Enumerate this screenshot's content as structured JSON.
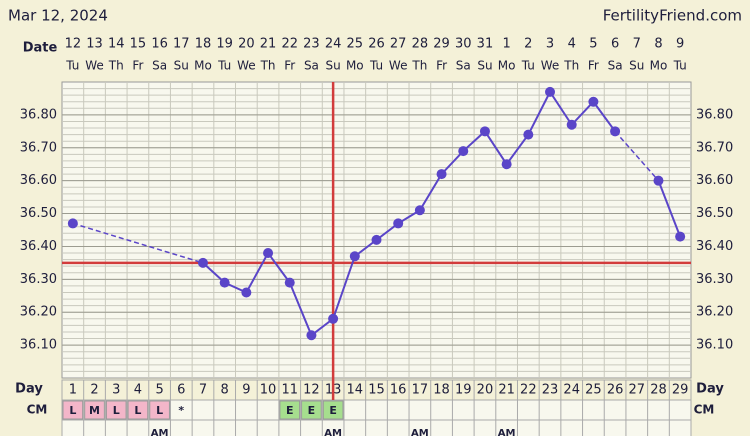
{
  "header": {
    "date": "Mar 12, 2024",
    "site": "FertilityFriend.com"
  },
  "chart_data": {
    "type": "line",
    "row_labels": {
      "date": "Date",
      "day": "Day",
      "cm": "CM"
    },
    "dates": [
      "12",
      "13",
      "14",
      "15",
      "16",
      "17",
      "18",
      "19",
      "20",
      "21",
      "22",
      "23",
      "24",
      "25",
      "26",
      "27",
      "28",
      "29",
      "30",
      "31",
      "1",
      "2",
      "3",
      "4",
      "5",
      "6",
      "7",
      "8",
      "9"
    ],
    "weekdays": [
      "Tu",
      "We",
      "Th",
      "Fr",
      "Sa",
      "Su",
      "Mo",
      "Tu",
      "We",
      "Th",
      "Fr",
      "Sa",
      "Su",
      "Mo",
      "Tu",
      "We",
      "Th",
      "Fr",
      "Sa",
      "Su",
      "Mo",
      "Tu",
      "We",
      "Th",
      "Fr",
      "Sa",
      "Su",
      "Mo",
      "Tu"
    ],
    "categories": [
      1,
      2,
      3,
      4,
      5,
      6,
      7,
      8,
      9,
      10,
      11,
      12,
      13,
      14,
      15,
      16,
      17,
      18,
      19,
      20,
      21,
      22,
      23,
      24,
      25,
      26,
      27,
      28,
      29
    ],
    "values": [
      36.47,
      null,
      null,
      null,
      null,
      null,
      36.35,
      36.29,
      36.26,
      36.38,
      36.29,
      36.13,
      36.18,
      36.37,
      36.42,
      36.47,
      36.51,
      36.62,
      36.69,
      36.75,
      36.65,
      36.74,
      36.87,
      36.77,
      36.84,
      36.75,
      null,
      36.6,
      36.43
    ],
    "color": "#5a45c8",
    "ylim": [
      36.0,
      36.9
    ],
    "yticks": [
      {
        "value": 36.1,
        "label": "36.10"
      },
      {
        "value": 36.2,
        "label": "36.20"
      },
      {
        "value": 36.3,
        "label": "36.30"
      },
      {
        "value": 36.4,
        "label": "36.40"
      },
      {
        "value": 36.5,
        "label": "36.50"
      },
      {
        "value": 36.6,
        "label": "36.60"
      },
      {
        "value": 36.7,
        "label": "36.70"
      },
      {
        "value": 36.8,
        "label": "36.80"
      }
    ],
    "minor_grid_step": 0.02,
    "grid": true,
    "coverline": 36.35,
    "ovulation_day": 13,
    "marker_color": "#d23c3c",
    "cm": [
      "L",
      "M",
      "L",
      "L",
      "L",
      "*",
      null,
      null,
      null,
      null,
      "E",
      "E",
      "E",
      null,
      null,
      null,
      null,
      null,
      null,
      null,
      null,
      null,
      null,
      null,
      null,
      null,
      null,
      null,
      null
    ],
    "cm_colors": {
      "L": "#f3b6c9",
      "M": "#f3b6c9",
      "E": "#a6de8e"
    },
    "time": [
      null,
      null,
      null,
      null,
      "AM",
      null,
      null,
      null,
      null,
      null,
      null,
      null,
      "AM",
      null,
      null,
      null,
      "AM",
      null,
      null,
      null,
      "AM",
      null,
      null,
      null,
      null,
      null,
      null,
      null,
      null
    ]
  }
}
